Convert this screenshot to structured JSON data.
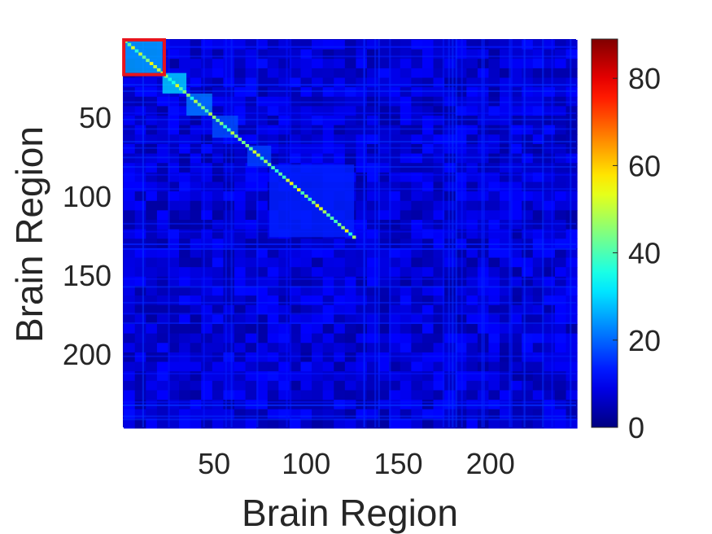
{
  "chart_data": {
    "type": "heatmap",
    "xlabel": "Brain Region",
    "ylabel": "Brain Region",
    "x_range": [
      1,
      246
    ],
    "y_range": [
      1,
      246
    ],
    "x_ticks": [
      50,
      100,
      150,
      200
    ],
    "y_ticks": [
      50,
      100,
      150,
      200
    ],
    "colorbar": {
      "colormap": "jet",
      "range": [
        0,
        89
      ],
      "ticks": [
        0,
        20,
        40,
        60,
        80
      ]
    },
    "background_value_range": [
      3,
      12
    ],
    "diagonal_blocks": [
      {
        "start": 1,
        "end": 21,
        "value": 26
      },
      {
        "start": 22,
        "end": 34,
        "value": 30
      },
      {
        "start": 35,
        "end": 48,
        "value": 22
      },
      {
        "start": 49,
        "end": 62,
        "value": 18
      },
      {
        "start": 68,
        "end": 80,
        "value": 17
      },
      {
        "start": 80,
        "end": 125,
        "value": 14
      }
    ],
    "highlight_box": {
      "start": 1,
      "end": 22,
      "color": "#e8141c"
    }
  }
}
